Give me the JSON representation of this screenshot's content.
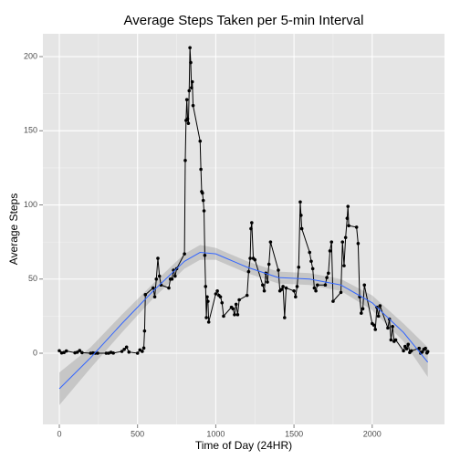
{
  "chart_data": {
    "type": "line",
    "title": "Average Steps Taken per 5-min Interval",
    "xlabel": "Time of Day (24HR)",
    "ylabel": "Average Steps",
    "color": "#000000",
    "grid": true,
    "x": [
      0,
      15,
      30,
      45,
      100,
      115,
      130,
      145,
      200,
      215,
      230,
      245,
      300,
      315,
      330,
      345,
      400,
      415,
      430,
      445,
      500,
      515,
      530,
      540,
      545,
      550,
      600,
      610,
      620,
      630,
      640,
      650,
      700,
      710,
      720,
      730,
      740,
      750,
      800,
      805,
      810,
      815,
      820,
      825,
      830,
      835,
      840,
      845,
      850,
      855,
      900,
      905,
      910,
      915,
      920,
      925,
      930,
      935,
      940,
      945,
      950,
      955,
      1000,
      1010,
      1020,
      1030,
      1040,
      1050,
      1100,
      1110,
      1120,
      1130,
      1140,
      1150,
      1200,
      1210,
      1220,
      1225,
      1230,
      1240,
      1250,
      1300,
      1310,
      1320,
      1330,
      1340,
      1350,
      1400,
      1410,
      1420,
      1430,
      1440,
      1450,
      1500,
      1510,
      1520,
      1530,
      1540,
      1545,
      1550,
      1600,
      1610,
      1620,
      1630,
      1640,
      1650,
      1700,
      1710,
      1720,
      1730,
      1740,
      1750,
      1800,
      1810,
      1820,
      1830,
      1840,
      1845,
      1850,
      1900,
      1910,
      1920,
      1930,
      1940,
      1950,
      2000,
      2010,
      2020,
      2030,
      2040,
      2050,
      2100,
      2110,
      2120,
      2130,
      2140,
      2150,
      2200,
      2210,
      2220,
      2230,
      2240,
      2250,
      2300,
      2310,
      2320,
      2330,
      2340,
      2350,
      2355
    ],
    "values": [
      1.7,
      0.2,
      0.5,
      1.5,
      0.3,
      0.7,
      1.8,
      0.4,
      0,
      0.2,
      0,
      0,
      0,
      0,
      0.6,
      0.1,
      1.2,
      2.6,
      4.1,
      0.8,
      0,
      2.2,
      1.2,
      3.5,
      15,
      39.5,
      44,
      38,
      50,
      64,
      52,
      46,
      44,
      50,
      50,
      56,
      52,
      57,
      67,
      130,
      157,
      171,
      158,
      155,
      177,
      206,
      196,
      179,
      183,
      167,
      143,
      124,
      109,
      108,
      103,
      96,
      66,
      45,
      24,
      38,
      35,
      21,
      40,
      42,
      39,
      38,
      34,
      25,
      31,
      30,
      26,
      33,
      26,
      36,
      39,
      55,
      64,
      84,
      88,
      64,
      63,
      46,
      42,
      54,
      48,
      60,
      75,
      56,
      42,
      43,
      45,
      24,
      44,
      42,
      38,
      45,
      58,
      102,
      93,
      84,
      68,
      62,
      57,
      44,
      42,
      46,
      46,
      51,
      54,
      69,
      75,
      35,
      41,
      75,
      59,
      78,
      91,
      99,
      86,
      85,
      74,
      38,
      27,
      30,
      46,
      20,
      19,
      16,
      31,
      25,
      32,
      17,
      23,
      9,
      18,
      8,
      9,
      1.6,
      4.6,
      3,
      6,
      0.5,
      1.6,
      3.3,
      0,
      0.9,
      2.6,
      3.3,
      0.2,
      1.1
    ],
    "smooth": {
      "color": "#3366ff",
      "band_color": "#999999",
      "x": [
        0,
        200,
        400,
        600,
        800,
        900,
        1000,
        1200,
        1400,
        1600,
        1800,
        2000,
        2200,
        2355
      ],
      "values": [
        -24,
        -3,
        20,
        42,
        62,
        68,
        67,
        58,
        51,
        50,
        46,
        34,
        14,
        -6
      ],
      "lower": [
        -35,
        -10,
        14,
        37,
        57,
        63,
        63,
        54,
        47,
        46,
        42,
        29,
        8,
        -16
      ],
      "upper": [
        -13,
        4,
        26,
        47,
        67,
        73,
        71,
        62,
        55,
        54,
        50,
        39,
        20,
        4
      ]
    },
    "xlim": [
      -105,
      2462
    ],
    "xticks": [
      0,
      500,
      1000,
      1500,
      2000
    ],
    "ylim": [
      -48,
      215.4
    ],
    "yticks": [
      0,
      50,
      100,
      150,
      200
    ]
  }
}
